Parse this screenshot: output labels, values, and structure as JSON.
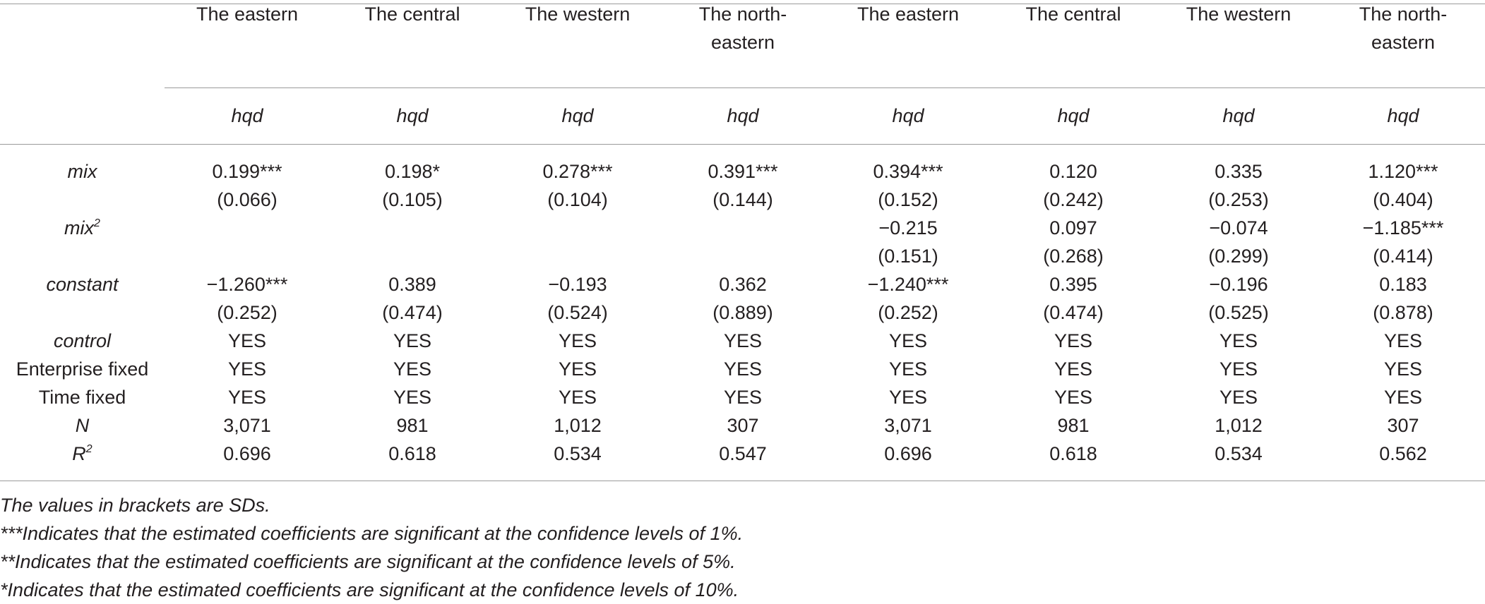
{
  "table": {
    "column_headers": [
      [
        "The eastern"
      ],
      [
        "The central"
      ],
      [
        "The western"
      ],
      [
        "The north-",
        "eastern"
      ],
      [
        "The eastern"
      ],
      [
        "The central"
      ],
      [
        "The western"
      ],
      [
        "The north-",
        "eastern"
      ]
    ],
    "dependent_variable": "hqd",
    "rows": [
      {
        "label": "mix",
        "sup": "",
        "italic": true,
        "values": [
          "0.199***",
          "0.198*",
          "0.278***",
          "0.391***",
          "0.394***",
          "0.120",
          "0.335",
          "1.120***"
        ]
      },
      {
        "label": "",
        "sup": "",
        "italic": false,
        "values": [
          "(0.066)",
          "(0.105)",
          "(0.104)",
          "(0.144)",
          "(0.152)",
          "(0.242)",
          "(0.253)",
          "(0.404)"
        ]
      },
      {
        "label": "mix",
        "sup": "2",
        "italic": true,
        "values": [
          "",
          "",
          "",
          "",
          "−0.215",
          "0.097",
          "−0.074",
          "−1.185***"
        ]
      },
      {
        "label": "",
        "sup": "",
        "italic": false,
        "values": [
          "",
          "",
          "",
          "",
          "(0.151)",
          "(0.268)",
          "(0.299)",
          "(0.414)"
        ]
      },
      {
        "label": "constant",
        "sup": "",
        "italic": true,
        "values": [
          "−1.260***",
          "0.389",
          "−0.193",
          "0.362",
          "−1.240***",
          "0.395",
          "−0.196",
          "0.183"
        ]
      },
      {
        "label": "",
        "sup": "",
        "italic": false,
        "values": [
          "(0.252)",
          "(0.474)",
          "(0.524)",
          "(0.889)",
          "(0.252)",
          "(0.474)",
          "(0.525)",
          "(0.878)"
        ]
      },
      {
        "label": "control",
        "sup": "",
        "italic": true,
        "values": [
          "YES",
          "YES",
          "YES",
          "YES",
          "YES",
          "YES",
          "YES",
          "YES"
        ]
      },
      {
        "label": "Enterprise fixed",
        "sup": "",
        "italic": false,
        "values": [
          "YES",
          "YES",
          "YES",
          "YES",
          "YES",
          "YES",
          "YES",
          "YES"
        ]
      },
      {
        "label": "Time fixed",
        "sup": "",
        "italic": false,
        "values": [
          "YES",
          "YES",
          "YES",
          "YES",
          "YES",
          "YES",
          "YES",
          "YES"
        ]
      },
      {
        "label": "N",
        "sup": "",
        "italic": true,
        "values": [
          "3,071",
          "981",
          "1,012",
          "307",
          "3,071",
          "981",
          "1,012",
          "307"
        ]
      },
      {
        "label": "R",
        "sup": "2",
        "italic": true,
        "values": [
          "0.696",
          "0.618",
          "0.534",
          "0.547",
          "0.696",
          "0.618",
          "0.534",
          "0.562"
        ]
      }
    ]
  },
  "notes": [
    "The values in brackets are SDs.",
    "***Indicates that the estimated coefficients are significant at the confidence levels of 1%.",
    "**Indicates that the estimated coefficients are significant at the confidence levels of 5%.",
    "*Indicates that the estimated coefficients are significant at the confidence levels of 10%."
  ],
  "colors": {
    "text": "#231f20",
    "rule": "#9a9a9a"
  }
}
